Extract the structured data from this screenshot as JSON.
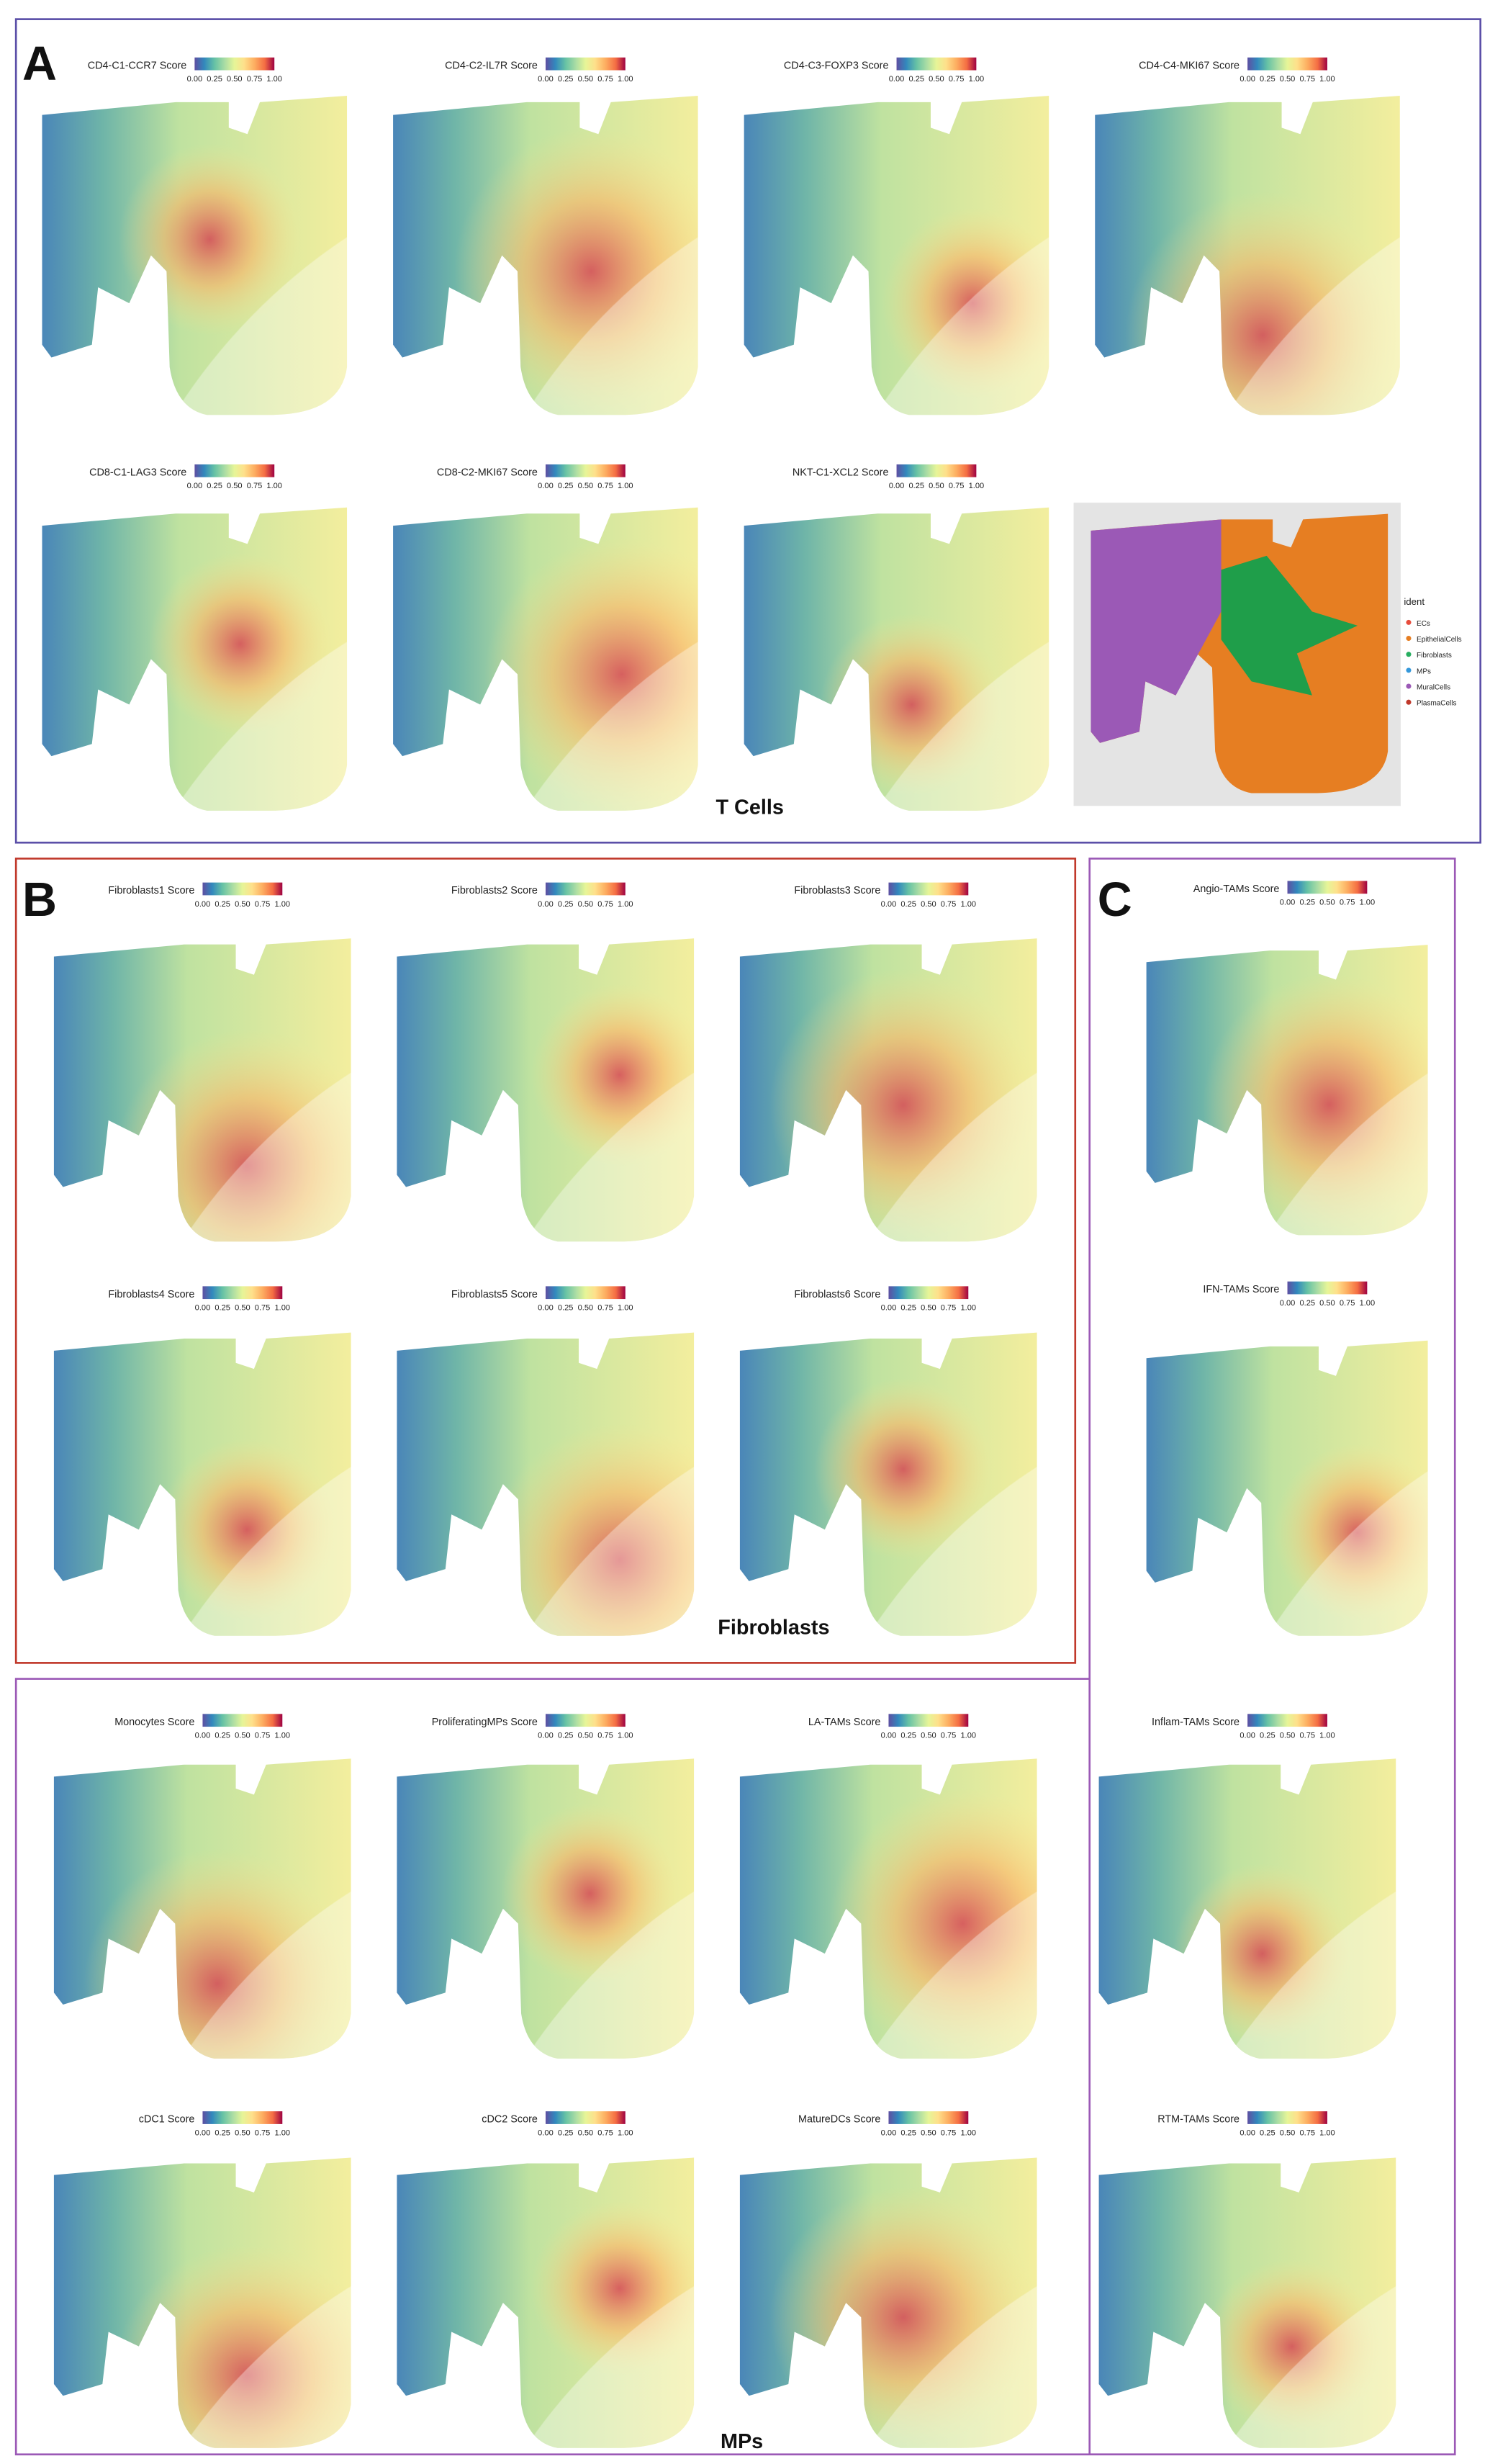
{
  "colorbar_ticks": [
    "0.00",
    "0.25",
    "0.50",
    "0.75",
    "1.00"
  ],
  "panels": [
    {
      "letter": "A",
      "title": "T Cells",
      "plots": [
        "CD4-C1-CCR7 Score",
        "CD4-C2-IL7R Score",
        "CD4-C3-FOXP3 Score",
        "CD4-C4-MKI67 Score",
        "CD8-C1-LAG3 Score",
        "CD8-C2-MKI67 Score",
        "NKT-C1-XCL2 Score"
      ],
      "legend": {
        "title": "ident",
        "items": [
          {
            "label": "ECs",
            "color": "#e74c3c"
          },
          {
            "label": "EpithelialCells",
            "color": "#e67e22"
          },
          {
            "label": "Fibroblasts",
            "color": "#27ae60"
          },
          {
            "label": "MPs",
            "color": "#3498db"
          },
          {
            "label": "MuralCells",
            "color": "#9b59b6"
          },
          {
            "label": "PlasmaCells",
            "color": "#c0392b"
          }
        ]
      }
    },
    {
      "letter": "B",
      "title": "Fibroblasts",
      "plots": [
        "Fibroblasts1 Score",
        "Fibroblasts2 Score",
        "Fibroblasts3 Score",
        "Fibroblasts4 Score",
        "Fibroblasts5 Score",
        "Fibroblasts6 Score"
      ]
    },
    {
      "letter": "C",
      "plots": [
        "Angio-TAMs Score",
        "IFN-TAMs Score"
      ]
    },
    {
      "title": "MPs",
      "plots": [
        "Monocytes Score",
        "ProliferatingMPs Score",
        "LA-TAMs Score",
        "Inflam-TAMs Score",
        "cDC1 Score",
        "cDC2 Score",
        "MatureDCs Score",
        "RTM-TAMs Score"
      ]
    }
  ]
}
